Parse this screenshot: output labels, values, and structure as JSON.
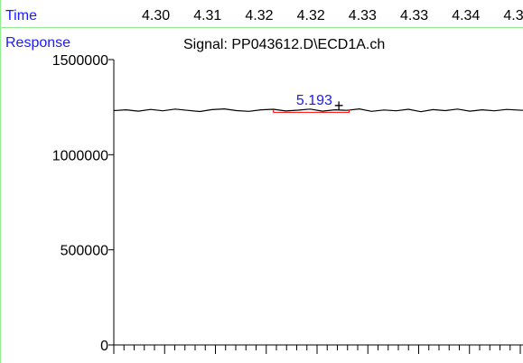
{
  "colors": {
    "axis_label": "#1a1aff",
    "trace": "#000000",
    "grid_border": "#90ee90",
    "peak_label": "#1a1aff",
    "baseline_marker": "#ff0000"
  },
  "chart_data": {
    "type": "line",
    "title": "Signal: PP043612.D\\ECD1A.ch",
    "xlabel": "Time",
    "ylabel": "Response",
    "x_tick_labels": [
      "4.30",
      "4.31",
      "4.32",
      "4.32",
      "4.33",
      "4.33",
      "4.34",
      "4.34"
    ],
    "y_ticks": [
      0,
      500000,
      1000000,
      1500000
    ],
    "y_tick_labels": [
      "0",
      "500000",
      "1000000",
      "1500000"
    ],
    "ylim": [
      0,
      1500000
    ],
    "xlim": [
      0,
      1
    ],
    "series": [
      {
        "x": [
          0.0,
          0.03,
          0.06,
          0.09,
          0.12,
          0.15,
          0.18,
          0.21,
          0.24,
          0.27,
          0.3,
          0.33,
          0.36,
          0.39,
          0.42,
          0.45,
          0.48,
          0.51,
          0.54,
          0.57,
          0.6,
          0.63,
          0.66,
          0.69,
          0.72,
          0.75,
          0.78,
          0.81,
          0.84,
          0.87,
          0.9,
          0.93,
          0.96,
          1.0
        ],
        "values": [
          1232000,
          1236000,
          1229000,
          1238000,
          1231000,
          1240000,
          1233000,
          1227000,
          1237000,
          1241000,
          1232000,
          1228000,
          1236000,
          1239000,
          1230000,
          1234000,
          1240000,
          1229000,
          1236000,
          1233000,
          1241000,
          1228000,
          1235000,
          1231000,
          1239000,
          1226000,
          1237000,
          1232000,
          1240000,
          1229000,
          1236000,
          1231000,
          1238000,
          1233000
        ]
      }
    ],
    "annotations": [
      {
        "text": "5.193",
        "x": 0.45,
        "y": 1262000
      }
    ],
    "peak_baseline": {
      "x_start": 0.39,
      "x_end": 0.575,
      "y": 1223000
    },
    "marker": {
      "symbol": "+",
      "x": 0.55,
      "y": 1235000
    }
  }
}
